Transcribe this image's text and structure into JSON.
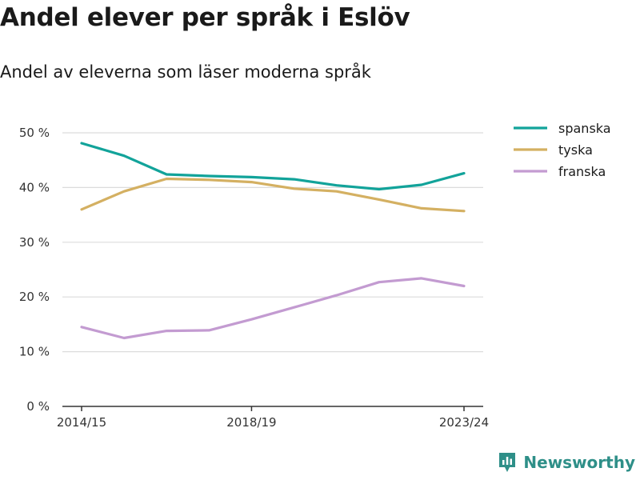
{
  "title": "Andel elever per språk i Eslöv",
  "subtitle": "Andel av eleverna som läser moderna språk",
  "brand": {
    "name": "Newsworthy",
    "icon": "newsworthy-logo-icon",
    "color": "#2e8f88"
  },
  "chart_data": {
    "type": "line",
    "x": [
      "2014/15",
      "2015/16",
      "2016/17",
      "2017/18",
      "2018/19",
      "2019/20",
      "2020/21",
      "2021/22",
      "2022/23",
      "2023/24"
    ],
    "series": [
      {
        "name": "spanska",
        "color": "#12a39a",
        "values": [
          48.1,
          45.8,
          42.4,
          42.1,
          41.9,
          41.5,
          40.4,
          39.7,
          40.5,
          42.6
        ]
      },
      {
        "name": "tyska",
        "color": "#d4b062",
        "values": [
          36.0,
          39.3,
          41.6,
          41.4,
          41.0,
          39.8,
          39.3,
          37.8,
          36.2,
          35.7
        ]
      },
      {
        "name": "franska",
        "color": "#c39bd1",
        "values": [
          14.5,
          12.5,
          13.8,
          13.9,
          15.9,
          18.1,
          20.3,
          22.7,
          23.4,
          22.0
        ]
      }
    ],
    "yticks": [
      0,
      10,
      20,
      30,
      40,
      50
    ],
    "ytick_labels": [
      "0 %",
      "10 %",
      "20 %",
      "30 %",
      "40 %",
      "50 %"
    ],
    "xtick_labels_shown": [
      "2014/15",
      "2018/19",
      "2023/24"
    ],
    "ylim": [
      0,
      50
    ],
    "grid": true,
    "legend_position": "top-right"
  }
}
